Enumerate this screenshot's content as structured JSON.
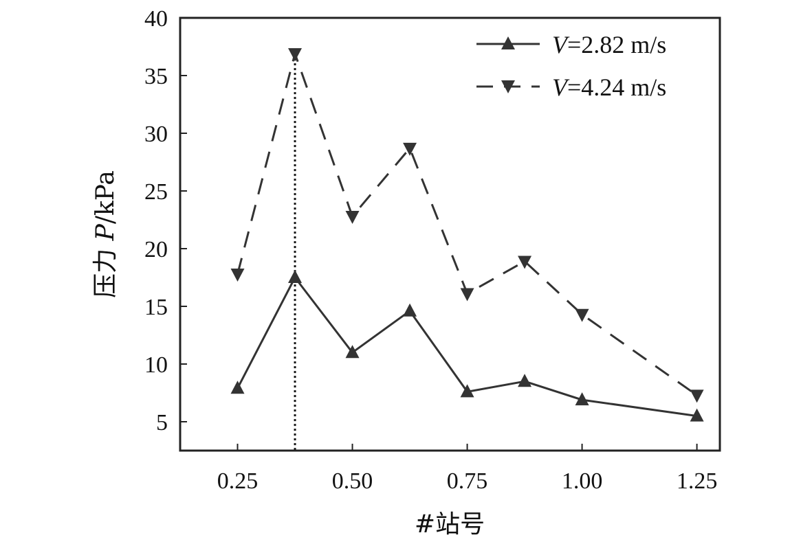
{
  "chart_data": {
    "type": "line",
    "xlabel": "#站号",
    "ylabel_prefix": "压力 ",
    "ylabel_var": "P",
    "ylabel_unit": "/kPa",
    "xlim": [
      0.125,
      1.3
    ],
    "ylim": [
      2.5,
      40
    ],
    "x_ticks": [
      "0.25",
      "0.50",
      "0.75",
      "1.00",
      "1.25"
    ],
    "y_ticks": [
      "5",
      "10",
      "15",
      "20",
      "25",
      "30",
      "35",
      "40"
    ],
    "grid": false,
    "legend_position": "top-right",
    "reference_line_x": 0.375,
    "series": [
      {
        "legend_var": "V",
        "legend_value": "=2.82 m/s",
        "marker": "triangle-up",
        "line_style": "solid",
        "color": "#333333",
        "x": [
          0.25,
          0.375,
          0.5,
          0.625,
          0.75,
          0.875,
          1.0,
          1.25
        ],
        "y": [
          7.9,
          17.5,
          11.0,
          14.6,
          7.6,
          8.5,
          6.9,
          5.5
        ]
      },
      {
        "legend_var": "V",
        "legend_value": "=4.24 m/s",
        "marker": "triangle-down",
        "line_style": "dashed",
        "color": "#333333",
        "x": [
          0.25,
          0.375,
          0.5,
          0.625,
          0.75,
          0.875,
          1.0,
          1.25
        ],
        "y": [
          17.8,
          36.9,
          22.8,
          28.7,
          16.1,
          18.9,
          14.3,
          7.3
        ]
      }
    ]
  }
}
